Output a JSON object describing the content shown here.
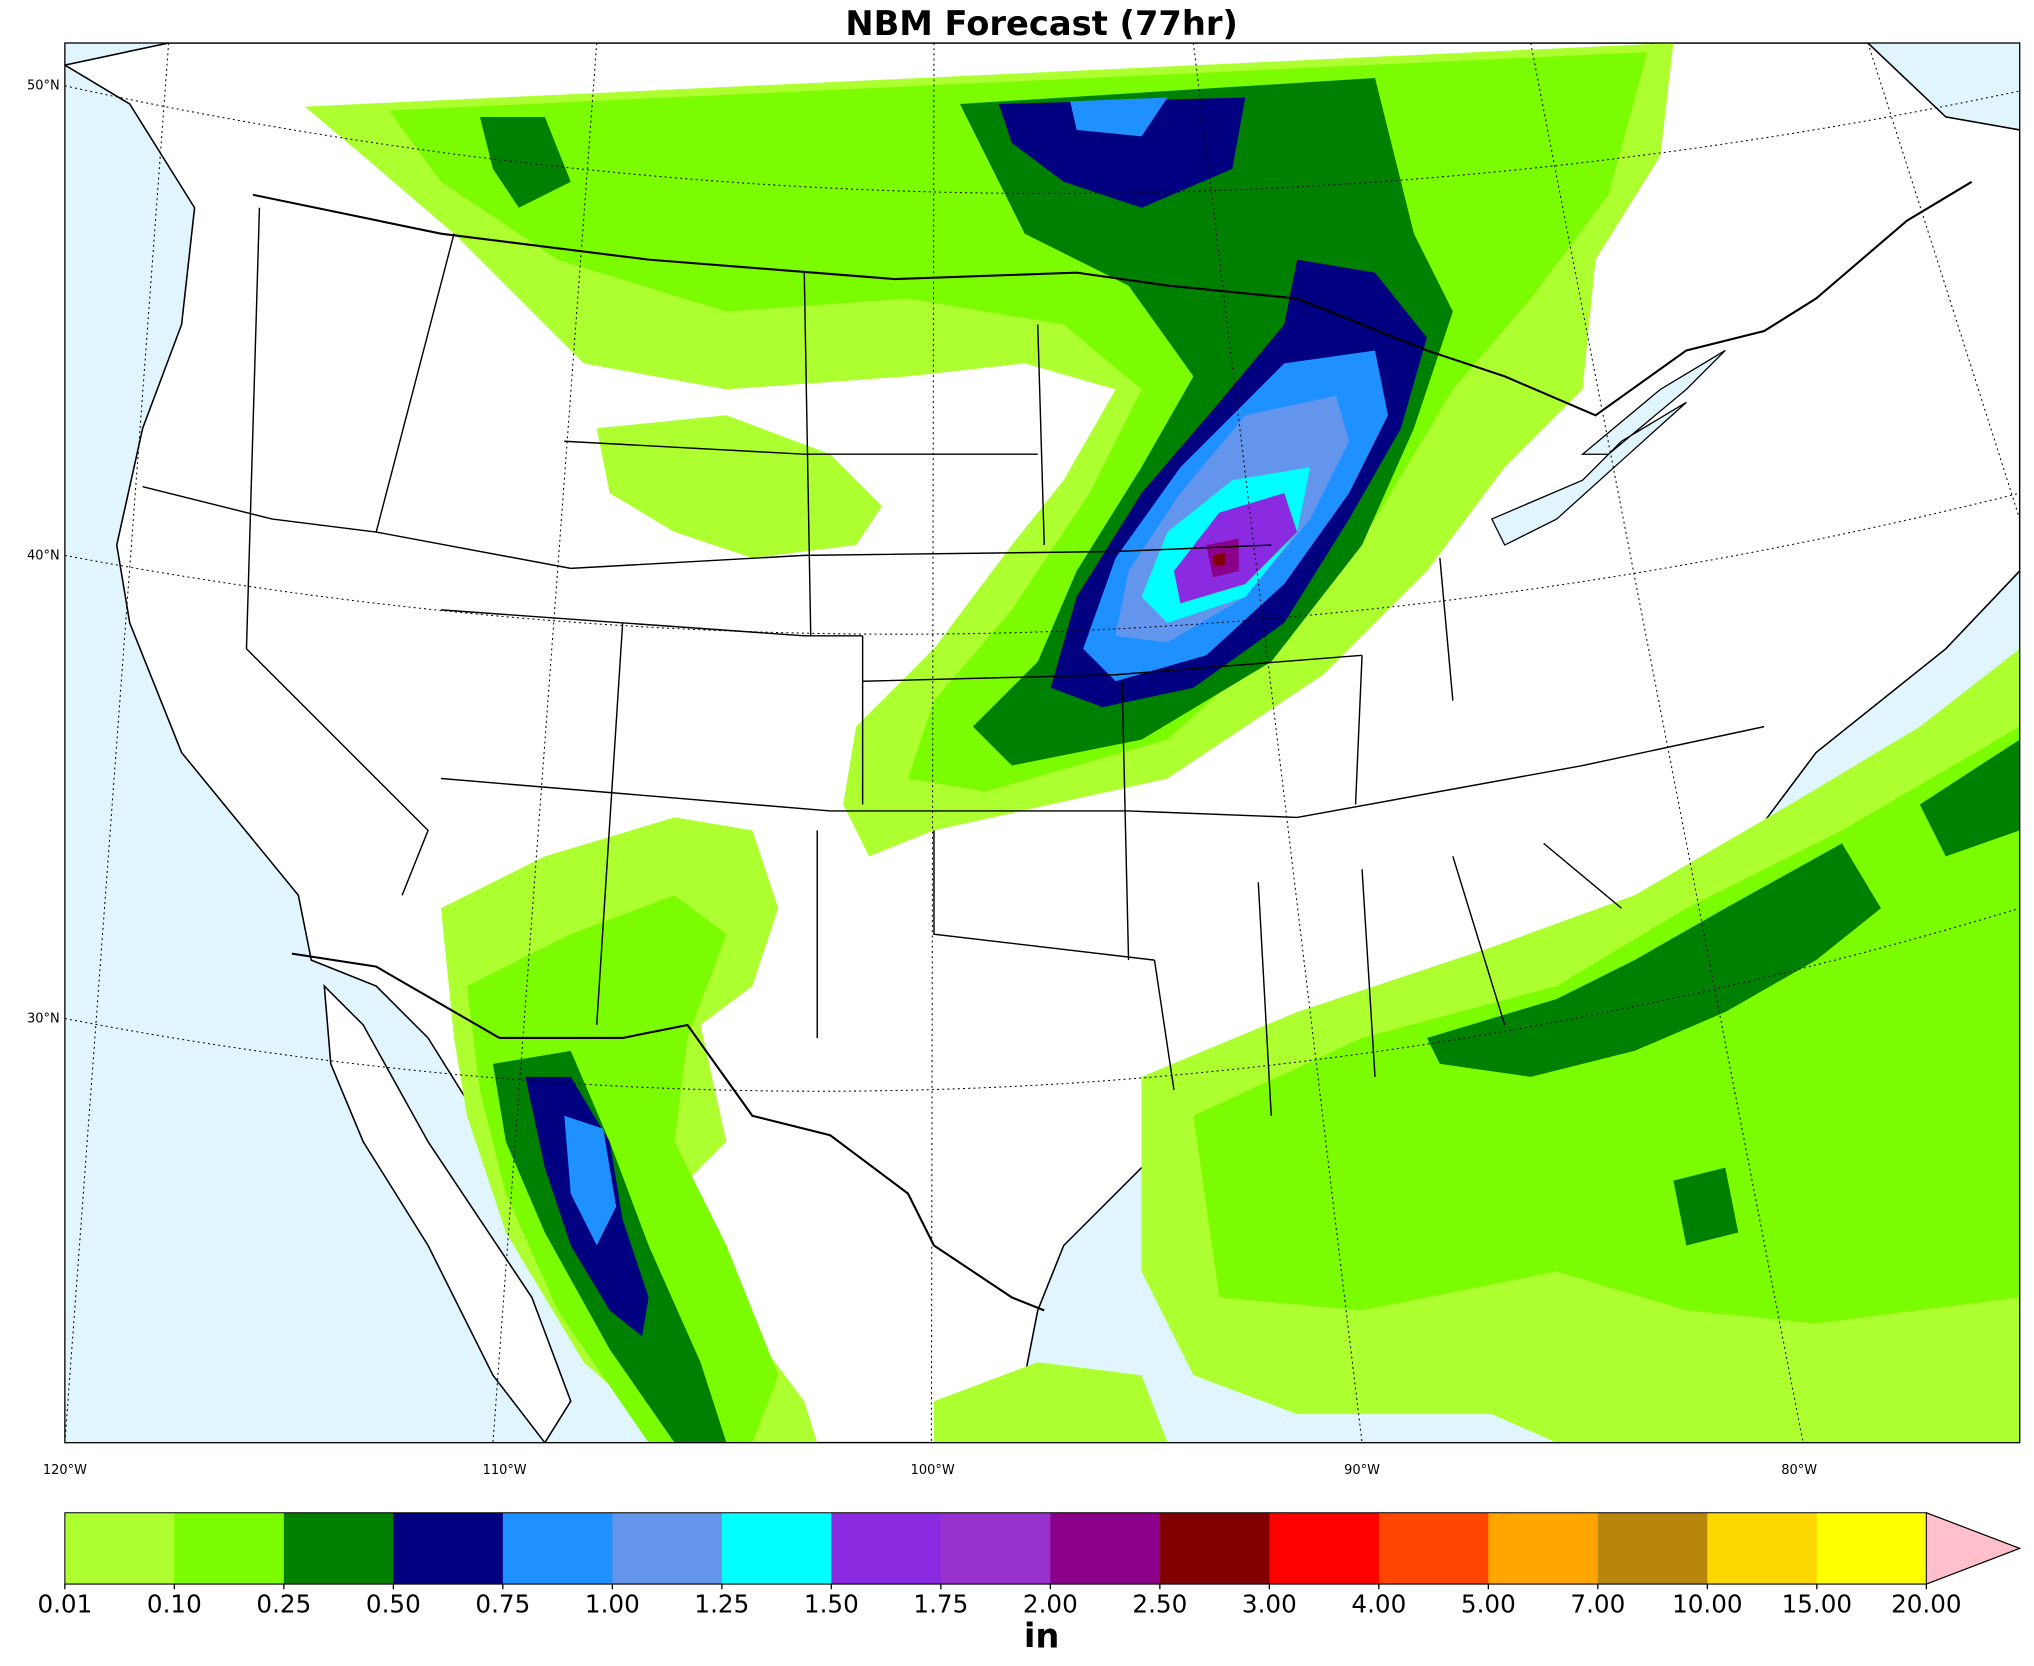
{
  "title": "NBM Forecast (77hr)",
  "lat_labels": [
    "50°N",
    "40°N",
    "30°N"
  ],
  "lon_labels": [
    "120°W",
    "110°W",
    "100°W",
    "90°W",
    "80°W"
  ],
  "colorbar": {
    "label": "in",
    "levels": [
      0.01,
      {
        "value": 0.1,
        "label": "0.10"
      },
      0.25,
      {
        "value": 0.5,
        "label": "0.50"
      },
      0.75,
      {
        "value": 1,
        "label": "1.00"
      },
      1.25,
      {
        "value": 1.5,
        "label": "1.50"
      },
      1.75,
      {
        "value": 2,
        "label": "2.00"
      },
      {
        "value": 2.5,
        "label": "2.50"
      },
      {
        "value": 3,
        "label": "3.00"
      },
      {
        "value": 4,
        "label": "4.00"
      },
      {
        "value": 5,
        "label": "5.00"
      },
      {
        "value": 7,
        "label": "7.00"
      },
      {
        "value": 10,
        "label": "10.00"
      },
      {
        "value": 15,
        "label": "15.00"
      },
      {
        "value": 20,
        "label": "20.00"
      }
    ],
    "colors": [
      "#adff2f",
      "#7cfc00",
      "#008000",
      "#000080",
      "#1e90ff",
      "#6495ed",
      "#00ffff",
      "#8a2be2",
      "#9932cc",
      "#8b008b",
      "#800000",
      "#ff0000",
      "#ff4500",
      "#ffa500",
      "#b8860b",
      "#ffd700",
      "#ffff00"
    ],
    "extend_color": "#ffc0cb"
  }
}
